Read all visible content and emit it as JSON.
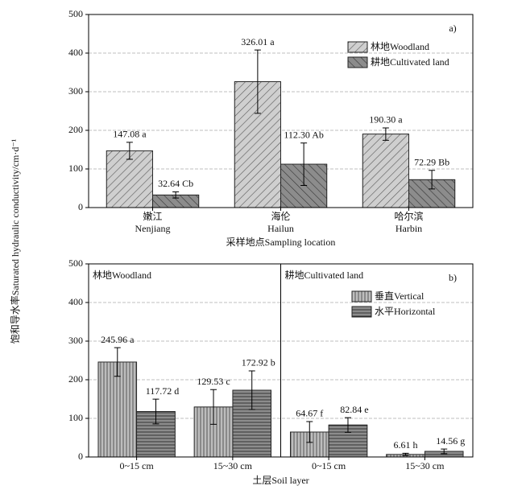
{
  "chart_data": [
    {
      "type": "bar",
      "panel": "a)",
      "ylabel": "饱和导水率Saturated hydraulic conductivity/cm·d⁻¹",
      "xlabel": "采样地点Sampling location",
      "categories_zh": [
        "嫩江",
        "海伦",
        "哈尔滨"
      ],
      "categories": [
        "Nenjiang",
        "Hailun",
        "Harbin"
      ],
      "series": [
        {
          "name": "林地Woodland",
          "color": "#cfcfcf",
          "hatch": "diag-right",
          "values": [
            147.08,
            326.01,
            190.3
          ],
          "errors": [
            22,
            82,
            16
          ],
          "value_labels": [
            "147.08 a",
            "326.01 a",
            "190.30 a"
          ]
        },
        {
          "name": "耕地Cultivated land",
          "color": "#8c8c8c",
          "hatch": "diag-left",
          "values": [
            32.64,
            112.3,
            72.29
          ],
          "errors": [
            8,
            55,
            24
          ],
          "value_labels": [
            "32.64 Cb",
            "112.30 Ab",
            "72.29 Bb"
          ]
        }
      ],
      "ylim": [
        0,
        500
      ],
      "yticks": [
        0,
        100,
        200,
        300,
        400,
        500
      ],
      "grid": true,
      "legend": "upper right"
    },
    {
      "type": "bar",
      "panel": "b)",
      "xlabel": "土层Soil layer",
      "groups": [
        "林地Woodland",
        "耕地Cultivated land"
      ],
      "categories": [
        "0~15 cm",
        "15~30 cm",
        "0~15 cm",
        "15~30 cm"
      ],
      "series": [
        {
          "name": "垂直Vertical",
          "color": "#bdbdbd",
          "hatch": "vertical",
          "values": [
            245.96,
            129.53,
            64.67,
            6.61
          ],
          "errors": [
            37,
            45,
            27,
            3
          ],
          "value_labels": [
            "245.96 a",
            "129.53 c",
            "64.67 f",
            "6.61 h"
          ]
        },
        {
          "name": "水平Horizontal",
          "color": "#8c8c8c",
          "hatch": "horizontal",
          "values": [
            117.72,
            172.92,
            82.84,
            14.56
          ],
          "errors": [
            32,
            50,
            19,
            6
          ],
          "value_labels": [
            "117.72 d",
            "172.92 b",
            "82.84 e",
            "14.56 g"
          ]
        }
      ],
      "ylim": [
        0,
        500
      ],
      "yticks": [
        0,
        100,
        200,
        300,
        400,
        500
      ],
      "grid": true,
      "legend": "upper right"
    }
  ]
}
